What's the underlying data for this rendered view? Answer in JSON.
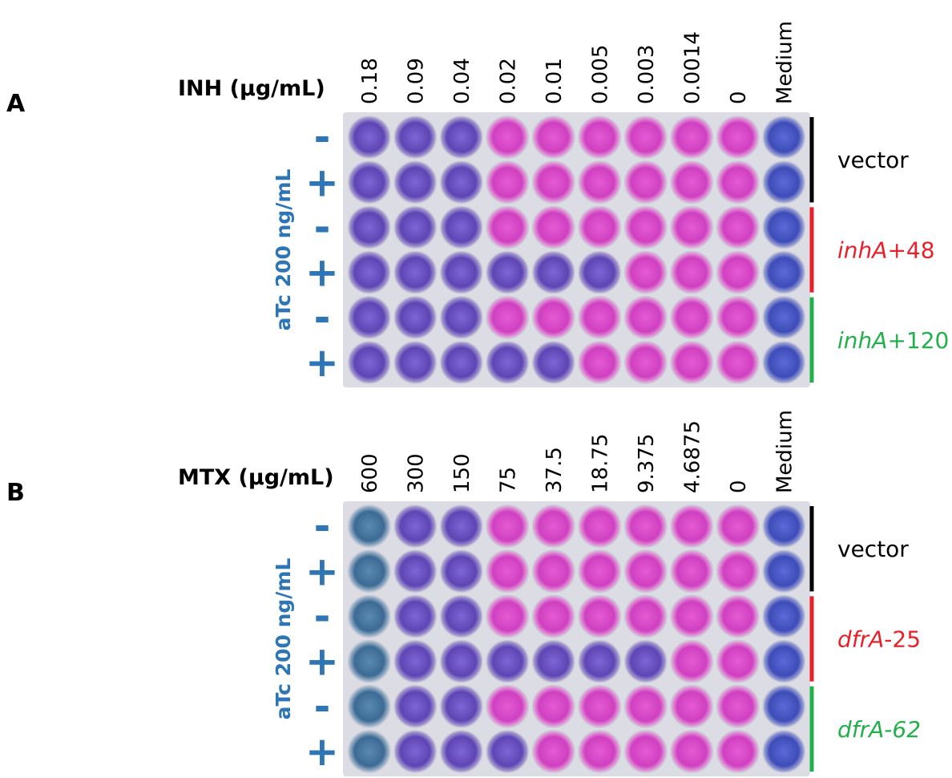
{
  "panels": [
    {
      "label": "A",
      "drug": "INH (µg/mL)",
      "concentrations": [
        "0.18",
        "0.09",
        "0.04",
        "0.02",
        "0.01",
        "0.005",
        "0.003",
        "0.0014",
        "0",
        "Medium"
      ],
      "induction_label": "aTc 200 ng/mL",
      "rows": [
        "-",
        "+",
        "-",
        "+",
        "-",
        "+"
      ],
      "groups": [
        {
          "color": "#000000",
          "parts": [
            {
              "text": "vector",
              "italic": false
            }
          ]
        },
        {
          "color": "#e8202a",
          "parts": [
            {
              "text": "inhA",
              "italic": true
            },
            {
              "text": "+48",
              "italic": false
            }
          ]
        },
        {
          "color": "#22b04b",
          "parts": [
            {
              "text": "inhA",
              "italic": true
            },
            {
              "text": "+120",
              "italic": false
            }
          ]
        }
      ]
    },
    {
      "label": "B",
      "drug": "MTX (µg/mL)",
      "concentrations": [
        "600",
        "300",
        "150",
        "75",
        "37.5",
        "18.75",
        "9.375",
        "4.6875",
        "0",
        "Medium"
      ],
      "induction_label": "aTc 200 ng/mL",
      "rows": [
        "-",
        "+",
        "-",
        "+",
        "-",
        "+"
      ],
      "groups": [
        {
          "color": "#000000",
          "parts": [
            {
              "text": "vector",
              "italic": false
            }
          ]
        },
        {
          "color": "#e8202a",
          "parts": [
            {
              "text": "dfrA",
              "italic": true
            },
            {
              "text": "-25",
              "italic": false
            }
          ]
        },
        {
          "color": "#22b04b",
          "parts": [
            {
              "text": "dfrA-62",
              "italic": true
            }
          ]
        }
      ]
    }
  ]
}
